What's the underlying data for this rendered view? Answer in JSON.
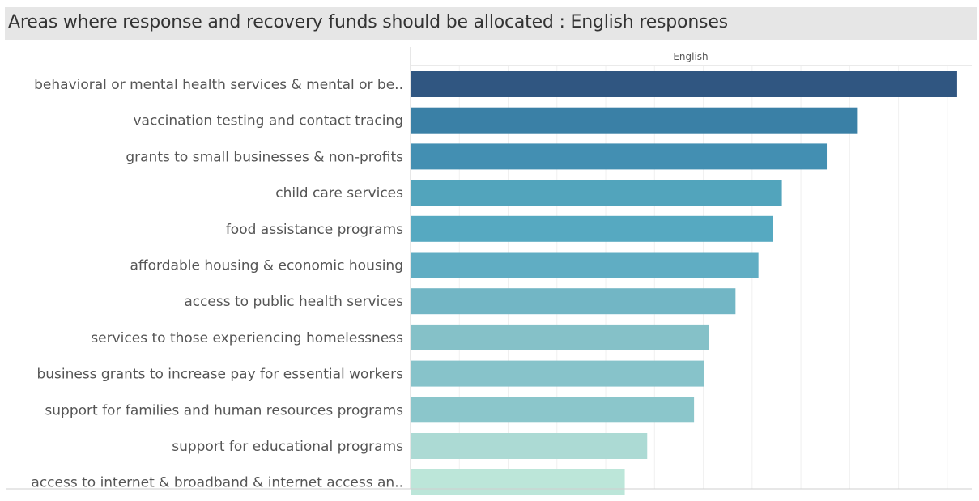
{
  "chart_data": {
    "type": "bar",
    "orientation": "horizontal",
    "title": "Areas where response and recovery funds should be allocated  :  English responses",
    "column_header": "English",
    "categories": [
      "behavioral or mental health services & mental or be..",
      "vaccination testing and contact tracing",
      "grants to small businesses & non-profits",
      "child care services",
      "food assistance programs",
      "affordable housing & economic housing",
      "access to public health services",
      "services to those experiencing homelessness",
      "business grants to increase pay for essential workers",
      "support for families and human resources programs",
      "support for educational programs",
      "access to internet & broadband & internet access an.."
    ],
    "values": [
      112,
      91.5,
      85.3,
      76.1,
      74.3,
      71.3,
      66.6,
      61.1,
      60.1,
      58.1,
      48.5,
      43.9
    ],
    "xlim": [
      0,
      115
    ],
    "colors": [
      "#305681",
      "#3a80a6",
      "#438fb2",
      "#52a4bc",
      "#56a9c1",
      "#60adc3",
      "#72b6c5",
      "#85c1c8",
      "#87c3ca",
      "#8bc6cb",
      "#acdad4",
      "#bce6d9"
    ],
    "grid": true,
    "legend": "none"
  }
}
